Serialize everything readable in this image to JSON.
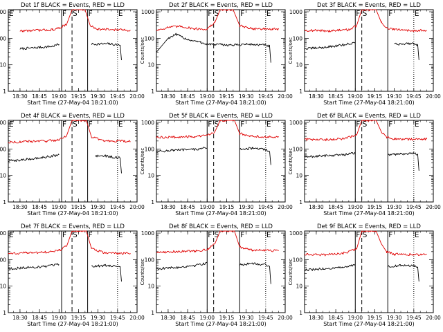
{
  "chart_data": [
    {
      "type": "line",
      "title": "Det 1f BLACK = Events, RED = LLD",
      "xlabel": "Start Time (27-May-04 18:21:00)",
      "ylabel": "Counts/sec",
      "xlim": [
        "18:21",
        "20:00"
      ],
      "ylim": [
        1,
        1200
      ],
      "yscale": "log",
      "x_ticks": [
        "18:30",
        "18:45",
        "19:00",
        "19:15",
        "19:30",
        "19:45",
        "20:00"
      ],
      "y_ticks": [
        "1",
        "10",
        "100",
        "1000"
      ],
      "series": [
        {
          "color": "#000000",
          "x": [
            "18:30",
            "18:45",
            "18:55",
            "19:00",
            "19:15",
            "19:25",
            "19:38",
            "19:47",
            "19:48"
          ],
          "y": [
            40,
            45,
            50,
            60,
            null,
            60,
            62,
            55,
            15
          ]
        },
        {
          "color": "#e00000",
          "x": [
            "18:30",
            "18:45",
            "18:55",
            "19:00",
            "19:06",
            "19:10",
            "19:13",
            "19:20",
            "19:24",
            "19:30",
            "19:45",
            "19:55"
          ],
          "y": [
            190,
            200,
            210,
            240,
            350,
            1200,
            1200,
            1200,
            300,
            220,
            210,
            200
          ]
        }
      ],
      "markers": [
        {
          "label": "E",
          "time": "18:21",
          "style": "dotted"
        },
        {
          "label": "F",
          "time": "19:02",
          "style": "solid"
        },
        {
          "label": "S",
          "time": "19:10",
          "style": "dashed"
        },
        {
          "label": "F",
          "time": "19:22",
          "style": "solid"
        },
        {
          "label": "E",
          "time": "19:45",
          "style": "dotted"
        }
      ]
    },
    {
      "type": "line",
      "title": "Det 2f BLACK = Events, RED = LLD",
      "xlabel": "Start Time (27-May-04 18:21:00)",
      "ylabel": "Counts/sec",
      "xlim": [
        "18:21",
        "20:00"
      ],
      "ylim": [
        1,
        1200
      ],
      "yscale": "log",
      "x_ticks": [
        "18:30",
        "18:45",
        "19:00",
        "19:15",
        "19:30",
        "19:45",
        "20:00"
      ],
      "y_ticks": [
        "1",
        "10",
        "100",
        "1000"
      ],
      "series": [
        {
          "color": "#000000",
          "x": [
            "18:21",
            "18:30",
            "18:36",
            "18:45",
            "18:55",
            "19:00",
            "19:20",
            "19:30",
            "19:45",
            "19:48",
            "19:49"
          ],
          "y": [
            30,
            100,
            140,
            90,
            70,
            60,
            55,
            60,
            55,
            50,
            12
          ]
        },
        {
          "color": "#e00000",
          "x": [
            "18:21",
            "18:30",
            "18:40",
            "18:50",
            "19:00",
            "19:06",
            "19:10",
            "19:13",
            "19:20",
            "19:25",
            "19:35",
            "19:50",
            "19:55"
          ],
          "y": [
            200,
            260,
            280,
            230,
            220,
            400,
            1200,
            1200,
            1200,
            300,
            230,
            220,
            220
          ]
        }
      ],
      "markers": [
        {
          "label": "F",
          "time": "19:00",
          "style": "solid"
        },
        {
          "label": "S",
          "time": "19:05",
          "style": "dashed"
        },
        {
          "label": "F",
          "time": "19:25",
          "style": "solid"
        },
        {
          "label": "E",
          "time": "19:45",
          "style": "dotted"
        }
      ]
    },
    {
      "type": "line",
      "title": "Det 3f BLACK = Events, RED = LLD",
      "xlabel": "Start Time (27-May-04 18:21:00)",
      "ylabel": "Counts/sec",
      "xlim": [
        "18:21",
        "20:00"
      ],
      "ylim": [
        1,
        1200
      ],
      "yscale": "log",
      "x_ticks": [
        "18:30",
        "18:45",
        "19:00",
        "19:15",
        "19:30",
        "19:45",
        "20:00"
      ],
      "y_ticks": [
        "1",
        "10",
        "100",
        "1000"
      ],
      "series": [
        {
          "color": "#000000",
          "x": [
            "18:21",
            "18:35",
            "18:50",
            "19:00",
            "19:15",
            "19:30",
            "19:45",
            "19:48",
            "19:49"
          ],
          "y": [
            40,
            45,
            55,
            70,
            null,
            60,
            65,
            55,
            15
          ]
        },
        {
          "color": "#e00000",
          "x": [
            "18:21",
            "18:40",
            "18:55",
            "19:01",
            "19:05",
            "19:09",
            "19:16",
            "19:20",
            "19:24",
            "19:30",
            "19:45",
            "19:55"
          ],
          "y": [
            200,
            190,
            210,
            300,
            1200,
            1200,
            1200,
            400,
            250,
            210,
            200,
            200
          ]
        }
      ],
      "markers": [
        {
          "label": "F",
          "time": "19:00",
          "style": "solid"
        },
        {
          "label": "S",
          "time": "19:05",
          "style": "dashed"
        },
        {
          "label": "F",
          "time": "19:25",
          "style": "solid"
        },
        {
          "label": "E",
          "time": "19:45",
          "style": "dotted"
        }
      ]
    },
    {
      "type": "line",
      "title": "Det 4f BLACK = Events, RED = LLD",
      "xlabel": "Start Time (27-May-04 18:21:00)",
      "ylabel": "Counts/sec",
      "xlim": [
        "18:21",
        "20:00"
      ],
      "ylim": [
        1,
        1200
      ],
      "yscale": "log",
      "x_ticks": [
        "18:30",
        "18:45",
        "19:00",
        "19:15",
        "19:30",
        "19:45",
        "20:00"
      ],
      "y_ticks": [
        "1",
        "10",
        "100",
        "1000"
      ],
      "series": [
        {
          "color": "#000000",
          "x": [
            "18:21",
            "18:35",
            "18:50",
            "19:00",
            "19:15",
            "19:28",
            "19:35",
            "19:47",
            "19:48"
          ],
          "y": [
            35,
            40,
            50,
            60,
            null,
            55,
            55,
            45,
            12
          ]
        },
        {
          "color": "#e00000",
          "x": [
            "18:21",
            "18:35",
            "18:50",
            "19:00",
            "19:06",
            "19:10",
            "19:14",
            "19:21",
            "19:25",
            "19:35",
            "19:45",
            "19:55"
          ],
          "y": [
            180,
            190,
            200,
            220,
            330,
            1200,
            1200,
            1200,
            280,
            200,
            200,
            190
          ]
        }
      ],
      "markers": [
        {
          "label": "E",
          "time": "18:21",
          "style": "dotted"
        },
        {
          "label": "F",
          "time": "19:02",
          "style": "solid"
        },
        {
          "label": "S",
          "time": "19:10",
          "style": "dashed"
        },
        {
          "label": "F",
          "time": "19:22",
          "style": "solid"
        },
        {
          "label": "E",
          "time": "19:45",
          "style": "dotted"
        }
      ]
    },
    {
      "type": "line",
      "title": "Det 5f BLACK = Events, RED = LLD",
      "xlabel": "Start Time (27-May-04 18:21:00)",
      "ylabel": "Counts/sec",
      "xlim": [
        "18:21",
        "20:00"
      ],
      "ylim": [
        1,
        1200
      ],
      "yscale": "log",
      "x_ticks": [
        "18:30",
        "18:45",
        "19:00",
        "19:15",
        "19:30",
        "19:45",
        "20:00"
      ],
      "y_ticks": [
        "1",
        "10",
        "100",
        "1000"
      ],
      "series": [
        {
          "color": "#000000",
          "x": [
            "18:21",
            "18:35",
            "18:50",
            "19:00",
            "19:15",
            "19:25",
            "19:35",
            "19:45",
            "19:48",
            "19:49"
          ],
          "y": [
            80,
            90,
            95,
            110,
            null,
            100,
            105,
            95,
            80,
            25
          ]
        },
        {
          "color": "#e00000",
          "x": [
            "18:21",
            "18:35",
            "18:50",
            "19:00",
            "19:06",
            "19:10",
            "19:14",
            "19:21",
            "19:25",
            "19:35",
            "19:45",
            "19:55"
          ],
          "y": [
            270,
            280,
            290,
            320,
            450,
            1200,
            1200,
            1200,
            380,
            300,
            290,
            280
          ]
        }
      ],
      "markers": [
        {
          "label": "F",
          "time": "19:00",
          "style": "solid"
        },
        {
          "label": "S",
          "time": "19:05",
          "style": "dashed"
        },
        {
          "label": "F",
          "time": "19:25",
          "style": "solid"
        },
        {
          "label": "E",
          "time": "19:45",
          "style": "dotted"
        }
      ]
    },
    {
      "type": "line",
      "title": "Det 6f BLACK = Events, RED = LLD",
      "xlabel": "Start Time (27-May-04 18:21:00)",
      "ylabel": "Counts/sec",
      "xlim": [
        "18:21",
        "20:00"
      ],
      "ylim": [
        1,
        1200
      ],
      "yscale": "log",
      "x_ticks": [
        "18:30",
        "18:45",
        "19:00",
        "19:15",
        "19:30",
        "19:45",
        "20:00"
      ],
      "y_ticks": [
        "1",
        "10",
        "100",
        "1000"
      ],
      "series": [
        {
          "color": "#000000",
          "x": [
            "18:21",
            "18:35",
            "18:50",
            "19:00",
            "19:15",
            "19:25",
            "19:35",
            "19:45",
            "19:48",
            "19:49"
          ],
          "y": [
            50,
            55,
            60,
            70,
            null,
            60,
            65,
            70,
            60,
            15
          ]
        },
        {
          "color": "#e00000",
          "x": [
            "18:21",
            "18:35",
            "18:50",
            "19:01",
            "19:05",
            "19:09",
            "19:16",
            "19:20",
            "19:24",
            "19:30",
            "19:45",
            "19:55"
          ],
          "y": [
            230,
            220,
            240,
            330,
            1200,
            1200,
            1200,
            450,
            280,
            240,
            230,
            240
          ]
        }
      ],
      "markers": [
        {
          "label": "F",
          "time": "19:00",
          "style": "solid"
        },
        {
          "label": "S",
          "time": "19:05",
          "style": "dashed"
        },
        {
          "label": "F",
          "time": "19:25",
          "style": "solid"
        },
        {
          "label": "E",
          "time": "19:45",
          "style": "dotted"
        }
      ]
    },
    {
      "type": "line",
      "title": "Det 7f BLACK = Events, RED = LLD",
      "xlabel": "Start Time (27-May-04 18:21:00)",
      "ylabel": "Counts/sec",
      "xlim": [
        "18:21",
        "20:00"
      ],
      "ylim": [
        1,
        1200
      ],
      "yscale": "log",
      "x_ticks": [
        "18:30",
        "18:45",
        "19:00",
        "19:15",
        "19:30",
        "19:45",
        "20:00"
      ],
      "y_ticks": [
        "1",
        "10",
        "100",
        "1000"
      ],
      "series": [
        {
          "color": "#000000",
          "x": [
            "18:21",
            "18:35",
            "18:50",
            "19:00",
            "19:15",
            "19:25",
            "19:35",
            "19:47",
            "19:48"
          ],
          "y": [
            45,
            50,
            55,
            65,
            null,
            55,
            60,
            55,
            15
          ]
        },
        {
          "color": "#e00000",
          "x": [
            "18:21",
            "18:35",
            "18:50",
            "19:00",
            "19:06",
            "19:10",
            "19:14",
            "19:21",
            "19:25",
            "19:35",
            "19:45",
            "19:55"
          ],
          "y": [
            170,
            180,
            190,
            220,
            330,
            1200,
            1200,
            1200,
            260,
            180,
            175,
            170
          ]
        }
      ],
      "markers": [
        {
          "label": "E",
          "time": "18:21",
          "style": "dotted"
        },
        {
          "label": "F",
          "time": "19:02",
          "style": "solid"
        },
        {
          "label": "S",
          "time": "19:10",
          "style": "dashed"
        },
        {
          "label": "F",
          "time": "19:22",
          "style": "solid"
        },
        {
          "label": "E",
          "time": "19:45",
          "style": "dotted"
        }
      ]
    },
    {
      "type": "line",
      "title": "Det 8f BLACK = Events, RED = LLD",
      "xlabel": "Start Time (27-May-04 18:21:00)",
      "ylabel": "Counts/sec",
      "xlim": [
        "18:21",
        "20:00"
      ],
      "ylim": [
        1,
        1200
      ],
      "yscale": "log",
      "x_ticks": [
        "18:30",
        "18:45",
        "19:00",
        "19:15",
        "19:30",
        "19:45",
        "20:00"
      ],
      "y_ticks": [
        "1",
        "10",
        "100",
        "1000"
      ],
      "series": [
        {
          "color": "#000000",
          "x": [
            "18:21",
            "18:35",
            "18:50",
            "19:00",
            "19:15",
            "19:25",
            "19:35",
            "19:45",
            "19:48",
            "19:49"
          ],
          "y": [
            45,
            50,
            60,
            75,
            null,
            65,
            70,
            65,
            55,
            12
          ]
        },
        {
          "color": "#e00000",
          "x": [
            "18:21",
            "18:35",
            "18:50",
            "19:00",
            "19:06",
            "19:10",
            "19:14",
            "19:21",
            "19:25",
            "19:35",
            "19:45",
            "19:55"
          ],
          "y": [
            190,
            200,
            210,
            240,
            400,
            1200,
            1200,
            1200,
            300,
            230,
            220,
            215
          ]
        }
      ],
      "markers": [
        {
          "label": "F",
          "time": "19:00",
          "style": "solid"
        },
        {
          "label": "S",
          "time": "19:05",
          "style": "dashed"
        },
        {
          "label": "F",
          "time": "19:25",
          "style": "solid"
        },
        {
          "label": "E",
          "time": "19:45",
          "style": "dotted"
        }
      ]
    },
    {
      "type": "line",
      "title": "Det 9f BLACK = Events, RED = LLD",
      "xlabel": "Start Time (27-May-04 18:21:00)",
      "ylabel": "Counts/sec",
      "xlim": [
        "18:21",
        "20:00"
      ],
      "ylim": [
        1,
        1200
      ],
      "yscale": "log",
      "x_ticks": [
        "18:30",
        "18:45",
        "19:00",
        "19:15",
        "19:30",
        "19:45",
        "20:00"
      ],
      "y_ticks": [
        "1",
        "10",
        "100",
        "1000"
      ],
      "series": [
        {
          "color": "#000000",
          "x": [
            "18:21",
            "18:35",
            "18:50",
            "19:00",
            "19:15",
            "19:25",
            "19:35",
            "19:45",
            "19:48",
            "19:49"
          ],
          "y": [
            40,
            45,
            50,
            65,
            null,
            55,
            60,
            60,
            50,
            15
          ]
        },
        {
          "color": "#e00000",
          "x": [
            "18:21",
            "18:35",
            "18:50",
            "19:01",
            "19:05",
            "19:09",
            "19:16",
            "19:20",
            "19:24",
            "19:30",
            "19:45",
            "19:55"
          ],
          "y": [
            160,
            150,
            170,
            250,
            1200,
            1200,
            1200,
            400,
            200,
            160,
            155,
            160
          ]
        }
      ],
      "markers": [
        {
          "label": "F",
          "time": "19:00",
          "style": "solid"
        },
        {
          "label": "S",
          "time": "19:05",
          "style": "dashed"
        },
        {
          "label": "F",
          "time": "19:25",
          "style": "solid"
        },
        {
          "label": "E",
          "time": "19:45",
          "style": "dotted"
        }
      ]
    }
  ]
}
